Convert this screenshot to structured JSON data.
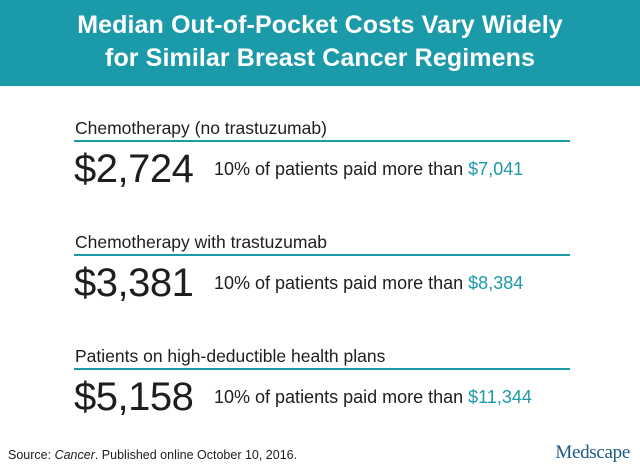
{
  "header": {
    "title_line1": "Median Out-of-Pocket Costs Vary Widely",
    "title_line2": "for Similar Breast Cancer Regimens"
  },
  "sections": [
    {
      "label": "Chemotherapy (no trastuzumab)",
      "median": "$2,724",
      "note_prefix": "10% of patients paid more than ",
      "note_value": "$7,041"
    },
    {
      "label": "Chemotherapy with trastuzumab",
      "median": "$3,381",
      "note_prefix": "10% of patients paid more than ",
      "note_value": "$8,384"
    },
    {
      "label": "Patients on high-deductible health plans",
      "median": "$5,158",
      "note_prefix": "10% of patients paid more than ",
      "note_value": "$11,344"
    }
  ],
  "footer": {
    "source_prefix": "Source: ",
    "source_journal": "Cancer",
    "source_suffix": ". Published online October 10, 2016."
  },
  "brand": "Medscape",
  "colors": {
    "accent": "#1b9aaa",
    "text": "#1e1e1e",
    "brand": "#1b5a85"
  }
}
